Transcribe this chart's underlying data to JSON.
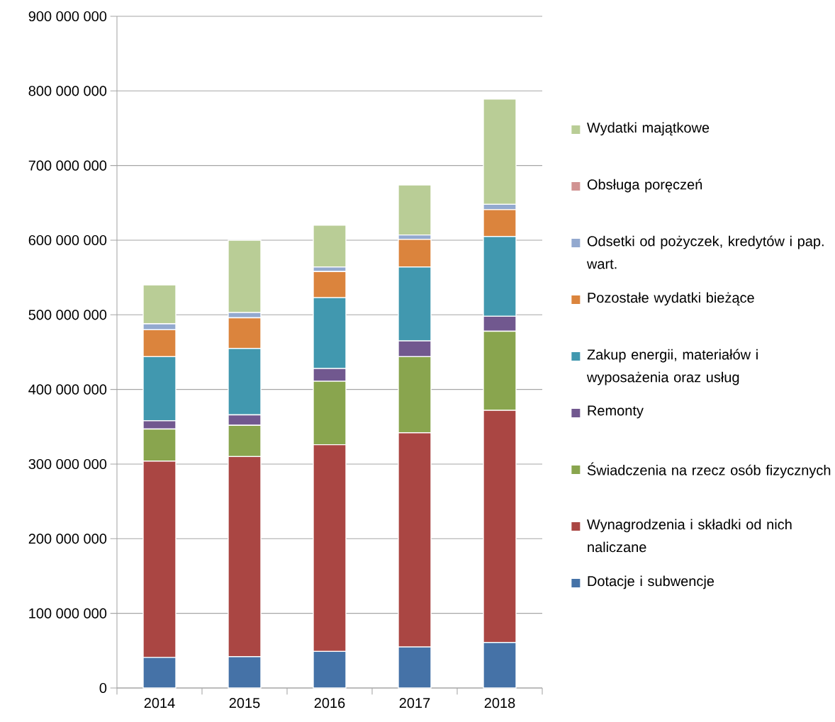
{
  "chart_data": {
    "type": "bar",
    "stacked": true,
    "categories": [
      "2014",
      "2015",
      "2016",
      "2017",
      "2018"
    ],
    "series": [
      {
        "name": "Dotacje i subwencje",
        "color": "#4572a7",
        "values": [
          41000000,
          42000000,
          49000000,
          55000000,
          61000000
        ]
      },
      {
        "name": "Wynagrodzenia i składki od nich naliczane",
        "color": "#aa4643",
        "values": [
          263000000,
          268000000,
          277000000,
          287000000,
          311000000
        ]
      },
      {
        "name": "Świadczenia na rzecz osób fizycznych",
        "color": "#89a54e",
        "values": [
          43000000,
          42000000,
          85000000,
          102000000,
          106000000
        ]
      },
      {
        "name": "Remonty",
        "color": "#71588f",
        "values": [
          11000000,
          14000000,
          17000000,
          21000000,
          20000000
        ]
      },
      {
        "name": "Zakup energii, materiałów i wyposażenia oraz usług",
        "color": "#4198af",
        "values": [
          86000000,
          89000000,
          95000000,
          99000000,
          107000000
        ]
      },
      {
        "name": "Pozostałe wydatki bieżące",
        "color": "#db843d",
        "values": [
          36000000,
          41000000,
          35000000,
          37000000,
          36000000
        ]
      },
      {
        "name": "Odsetki od pożyczek, kredytów i pap. wart.",
        "color": "#93a9cf",
        "values": [
          8000000,
          7000000,
          6000000,
          6000000,
          7000000
        ]
      },
      {
        "name": "Obsługa poręczeń",
        "color": "#d19392",
        "values": [
          0,
          0,
          0,
          0,
          0
        ]
      },
      {
        "name": "Wydatki majątkowe",
        "color": "#b9cd96",
        "values": [
          52000000,
          97000000,
          56000000,
          67000000,
          141000000
        ]
      }
    ],
    "ylim": [
      0,
      900000000
    ],
    "yticks": [
      0,
      {
        "value": 100000000,
        "label": "100 000 000"
      },
      {
        "value": 200000000,
        "label": "200 000 000"
      },
      {
        "value": 300000000,
        "label": "300 000 000"
      },
      {
        "value": 400000000,
        "label": "400 000 000"
      },
      {
        "value": 500000000,
        "label": "500 000 000"
      },
      {
        "value": 600000000,
        "label": "600 000 000"
      },
      {
        "value": 700000000,
        "label": "700 000 000"
      },
      {
        "value": 800000000,
        "label": "800 000 000"
      },
      {
        "value": 900000000,
        "label": "900 000 000"
      }
    ],
    "grid": "y",
    "legend": "right"
  }
}
